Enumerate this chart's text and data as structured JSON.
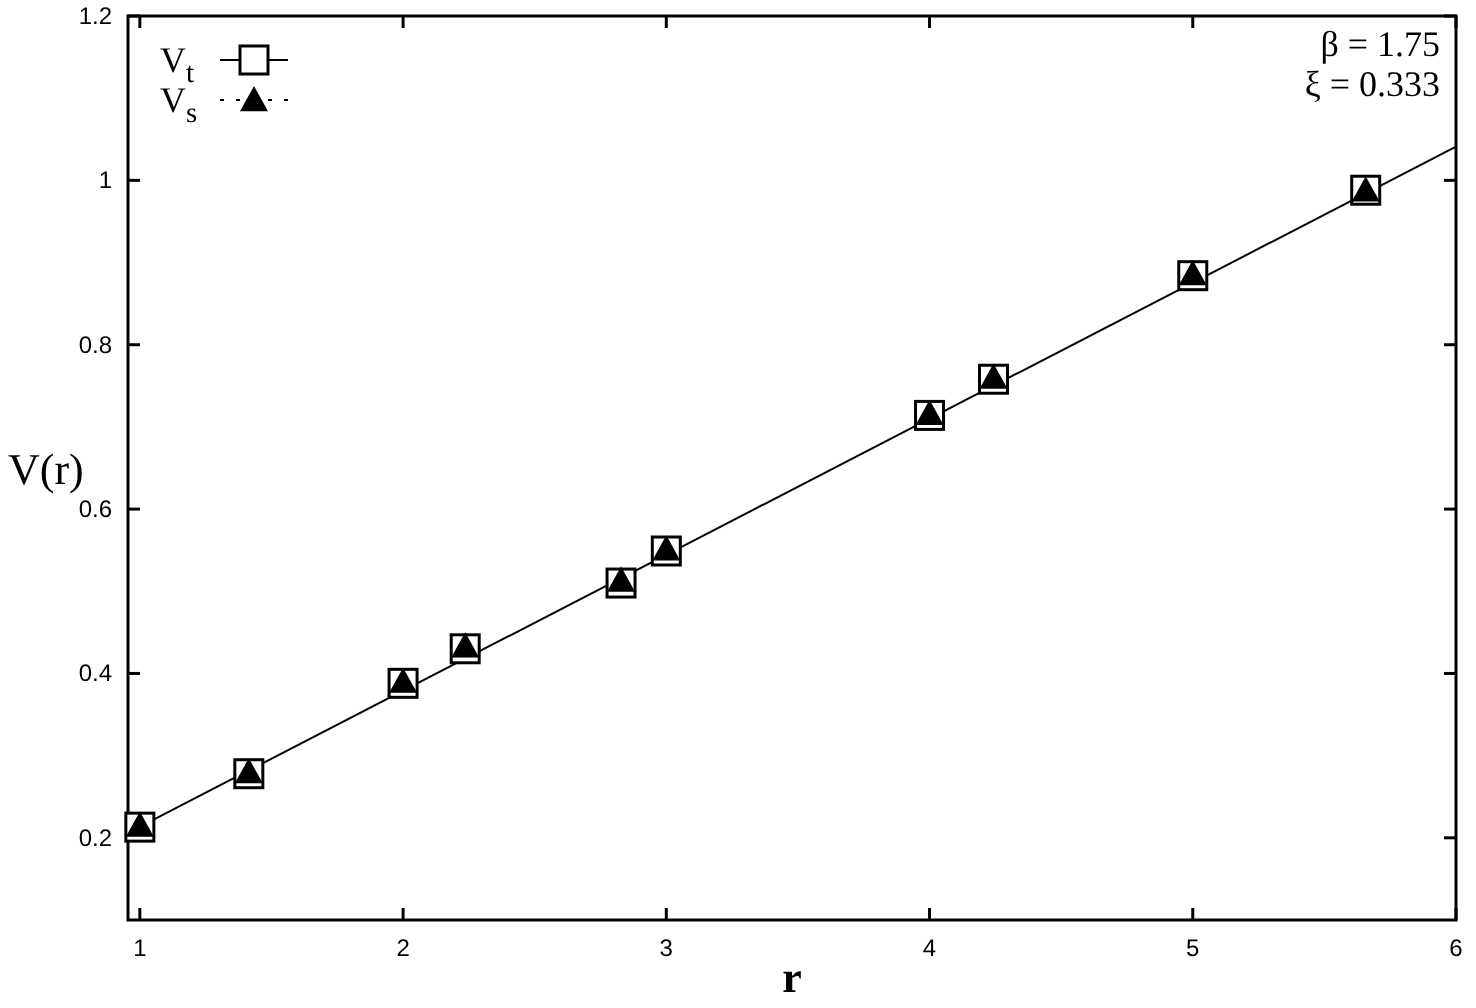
{
  "chart_data": {
    "type": "scatter",
    "xlabel": "r",
    "ylabel": "V(r)",
    "xlim": [
      0.955,
      6
    ],
    "xticks": [
      1,
      2,
      3,
      4,
      5,
      6
    ],
    "ylim": [
      0.1,
      1.2
    ],
    "yticks": [
      0.2,
      0.4,
      0.6,
      0.8,
      1,
      1.2
    ],
    "grid": false,
    "legend": "top left",
    "annotations": [
      "β = 1.75",
      "ξ = 0.333"
    ],
    "series": [
      {
        "name": "V$_{t}$",
        "marker": "square",
        "color": "#000000",
        "x": [
          1,
          1.414,
          2,
          2.236,
          2.828,
          3,
          4,
          4.243,
          5,
          5.657
        ],
        "values": [
          0.213,
          0.278,
          0.388,
          0.43,
          0.51,
          0.549,
          0.714,
          0.758,
          0.884,
          0.988
        ]
      },
      {
        "name": "V$_{s}$",
        "marker": "triangle",
        "color": "#000000",
        "x": [
          1,
          1.414,
          2,
          2.236,
          2.828,
          3,
          4,
          4.243,
          5,
          5.657
        ],
        "values": [
          0.215,
          0.28,
          0.39,
          0.433,
          0.513,
          0.551,
          0.716,
          0.76,
          0.886,
          0.988
        ]
      },
      {
        "type": "line",
        "color": "#000000",
        "x": [
          0.955,
          6
        ],
        "values": [
          0.206,
          1.041
        ]
      }
    ]
  }
}
